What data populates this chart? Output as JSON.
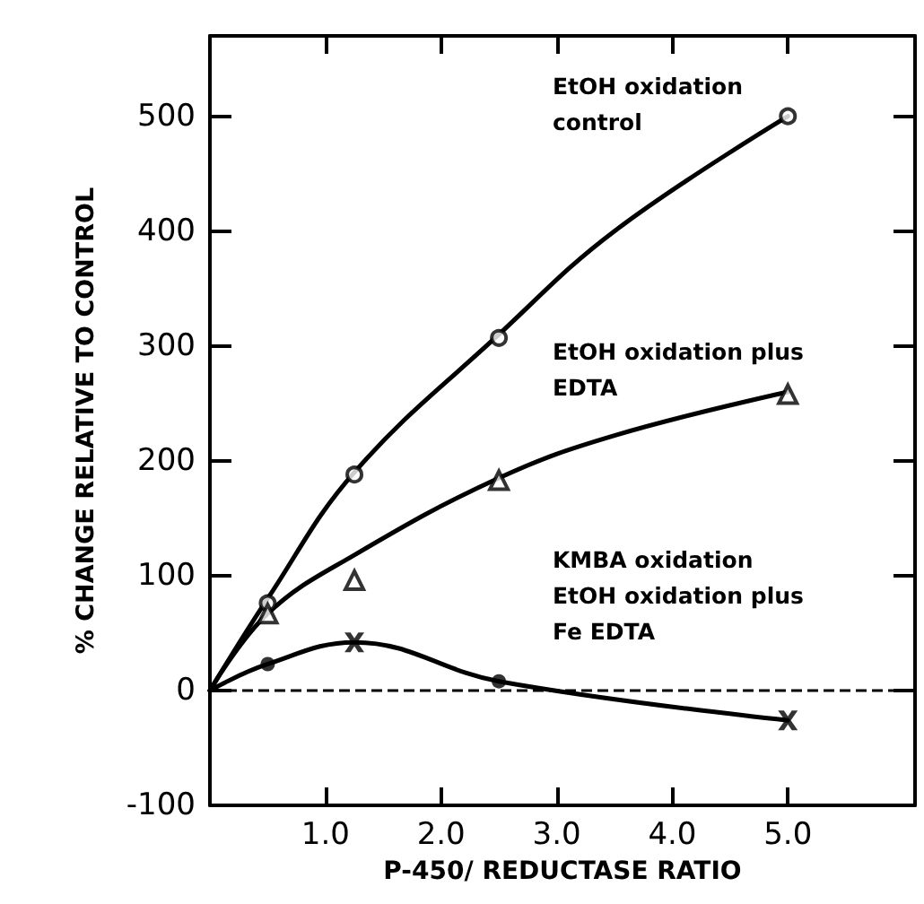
{
  "chart_data": {
    "type": "scatter",
    "xlabel": "P-450/ REDUCTASE RATIO",
    "ylabel": "% CHANGE RELATIVE TO CONTROL",
    "xlim": [
      0,
      6.1
    ],
    "ylim": [
      -100,
      570
    ],
    "xticks": [
      {
        "value": 1,
        "label": "1.0"
      },
      {
        "value": 2,
        "label": "2.0"
      },
      {
        "value": 3,
        "label": "3.0"
      },
      {
        "value": 4,
        "label": "4.0"
      },
      {
        "value": 5,
        "label": "5.0"
      }
    ],
    "yticks": [
      -100,
      0,
      100,
      200,
      300,
      400,
      500
    ],
    "grid": false,
    "series": [
      {
        "type": "line",
        "color": "#000000",
        "marker": "none",
        "x": [
          0,
          0.5,
          1.25,
          2.5,
          3.5,
          5
        ],
        "values": [
          0,
          80,
          190,
          310,
          400,
          500
        ]
      },
      {
        "type": "line",
        "color": "#000000",
        "marker": "none",
        "x": [
          0,
          0.5,
          1.25,
          2.5,
          3.5,
          5
        ],
        "values": [
          0,
          67,
          118,
          185,
          222,
          260
        ]
      },
      {
        "type": "line",
        "color": "#000000",
        "marker": "none",
        "x": [
          0,
          0.5,
          1.25,
          2.5,
          5
        ],
        "values": [
          0,
          23,
          42,
          8,
          -26
        ]
      },
      {
        "color": "#000000",
        "marker": "circle",
        "x": [
          0.5,
          1.25,
          2.5,
          5
        ],
        "values": [
          76,
          188,
          307,
          500
        ]
      },
      {
        "color": "#000000",
        "marker": "triangle",
        "x": [
          0.5,
          1.25,
          2.5,
          5
        ],
        "values": [
          67,
          96,
          183,
          258
        ]
      },
      {
        "color": "#000000",
        "marker": "circle",
        "x": [
          0.5,
          2.5
        ],
        "values": [
          23,
          8
        ]
      },
      {
        "color": "#000000",
        "marker": "cross",
        "x": [
          1.25,
          5
        ],
        "values": [
          42,
          -26
        ]
      }
    ],
    "ref_lines": [
      {
        "axis": "y",
        "value": 0,
        "label": null,
        "line_style": "dashed",
        "color": "#000000"
      }
    ],
    "annotations": [
      "EtOH oxidation\ncontrol",
      "EtOH oxidation plus\nEDTA",
      "KMBA oxidation\nEtOH oxidation plus\nFe EDTA"
    ]
  }
}
